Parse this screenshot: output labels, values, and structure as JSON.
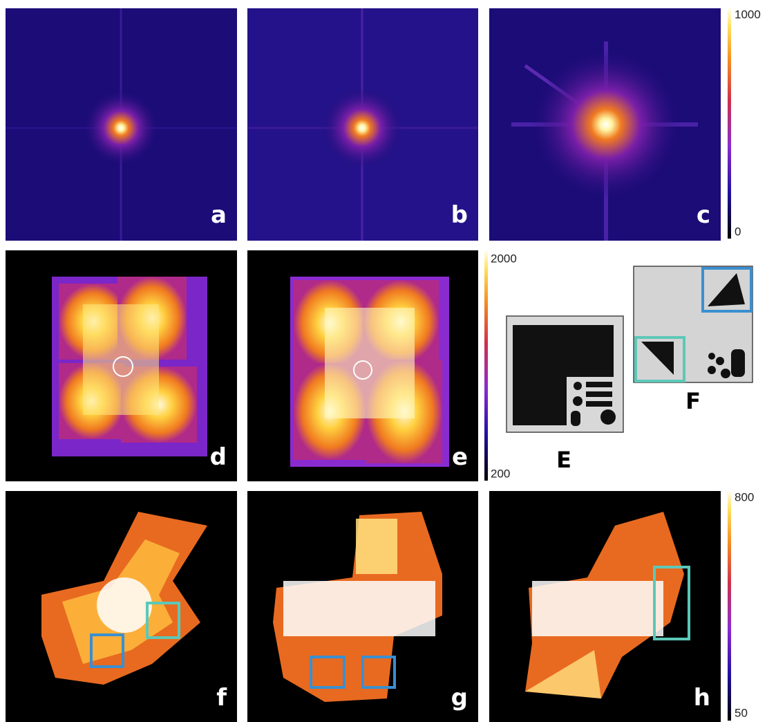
{
  "panels": [
    {
      "label": "a"
    },
    {
      "label": "b"
    },
    {
      "label": "c"
    },
    {
      "label": "d"
    },
    {
      "label": "e"
    },
    {
      "label": "f"
    },
    {
      "label": "g"
    },
    {
      "label": "h"
    }
  ],
  "colorbars": [
    {
      "max": "1000",
      "min": "0"
    },
    {
      "max": "2000",
      "min": "200"
    },
    {
      "max": "800",
      "min": "50"
    }
  ],
  "insets": [
    {
      "label": "E"
    },
    {
      "label": "F"
    }
  ]
}
